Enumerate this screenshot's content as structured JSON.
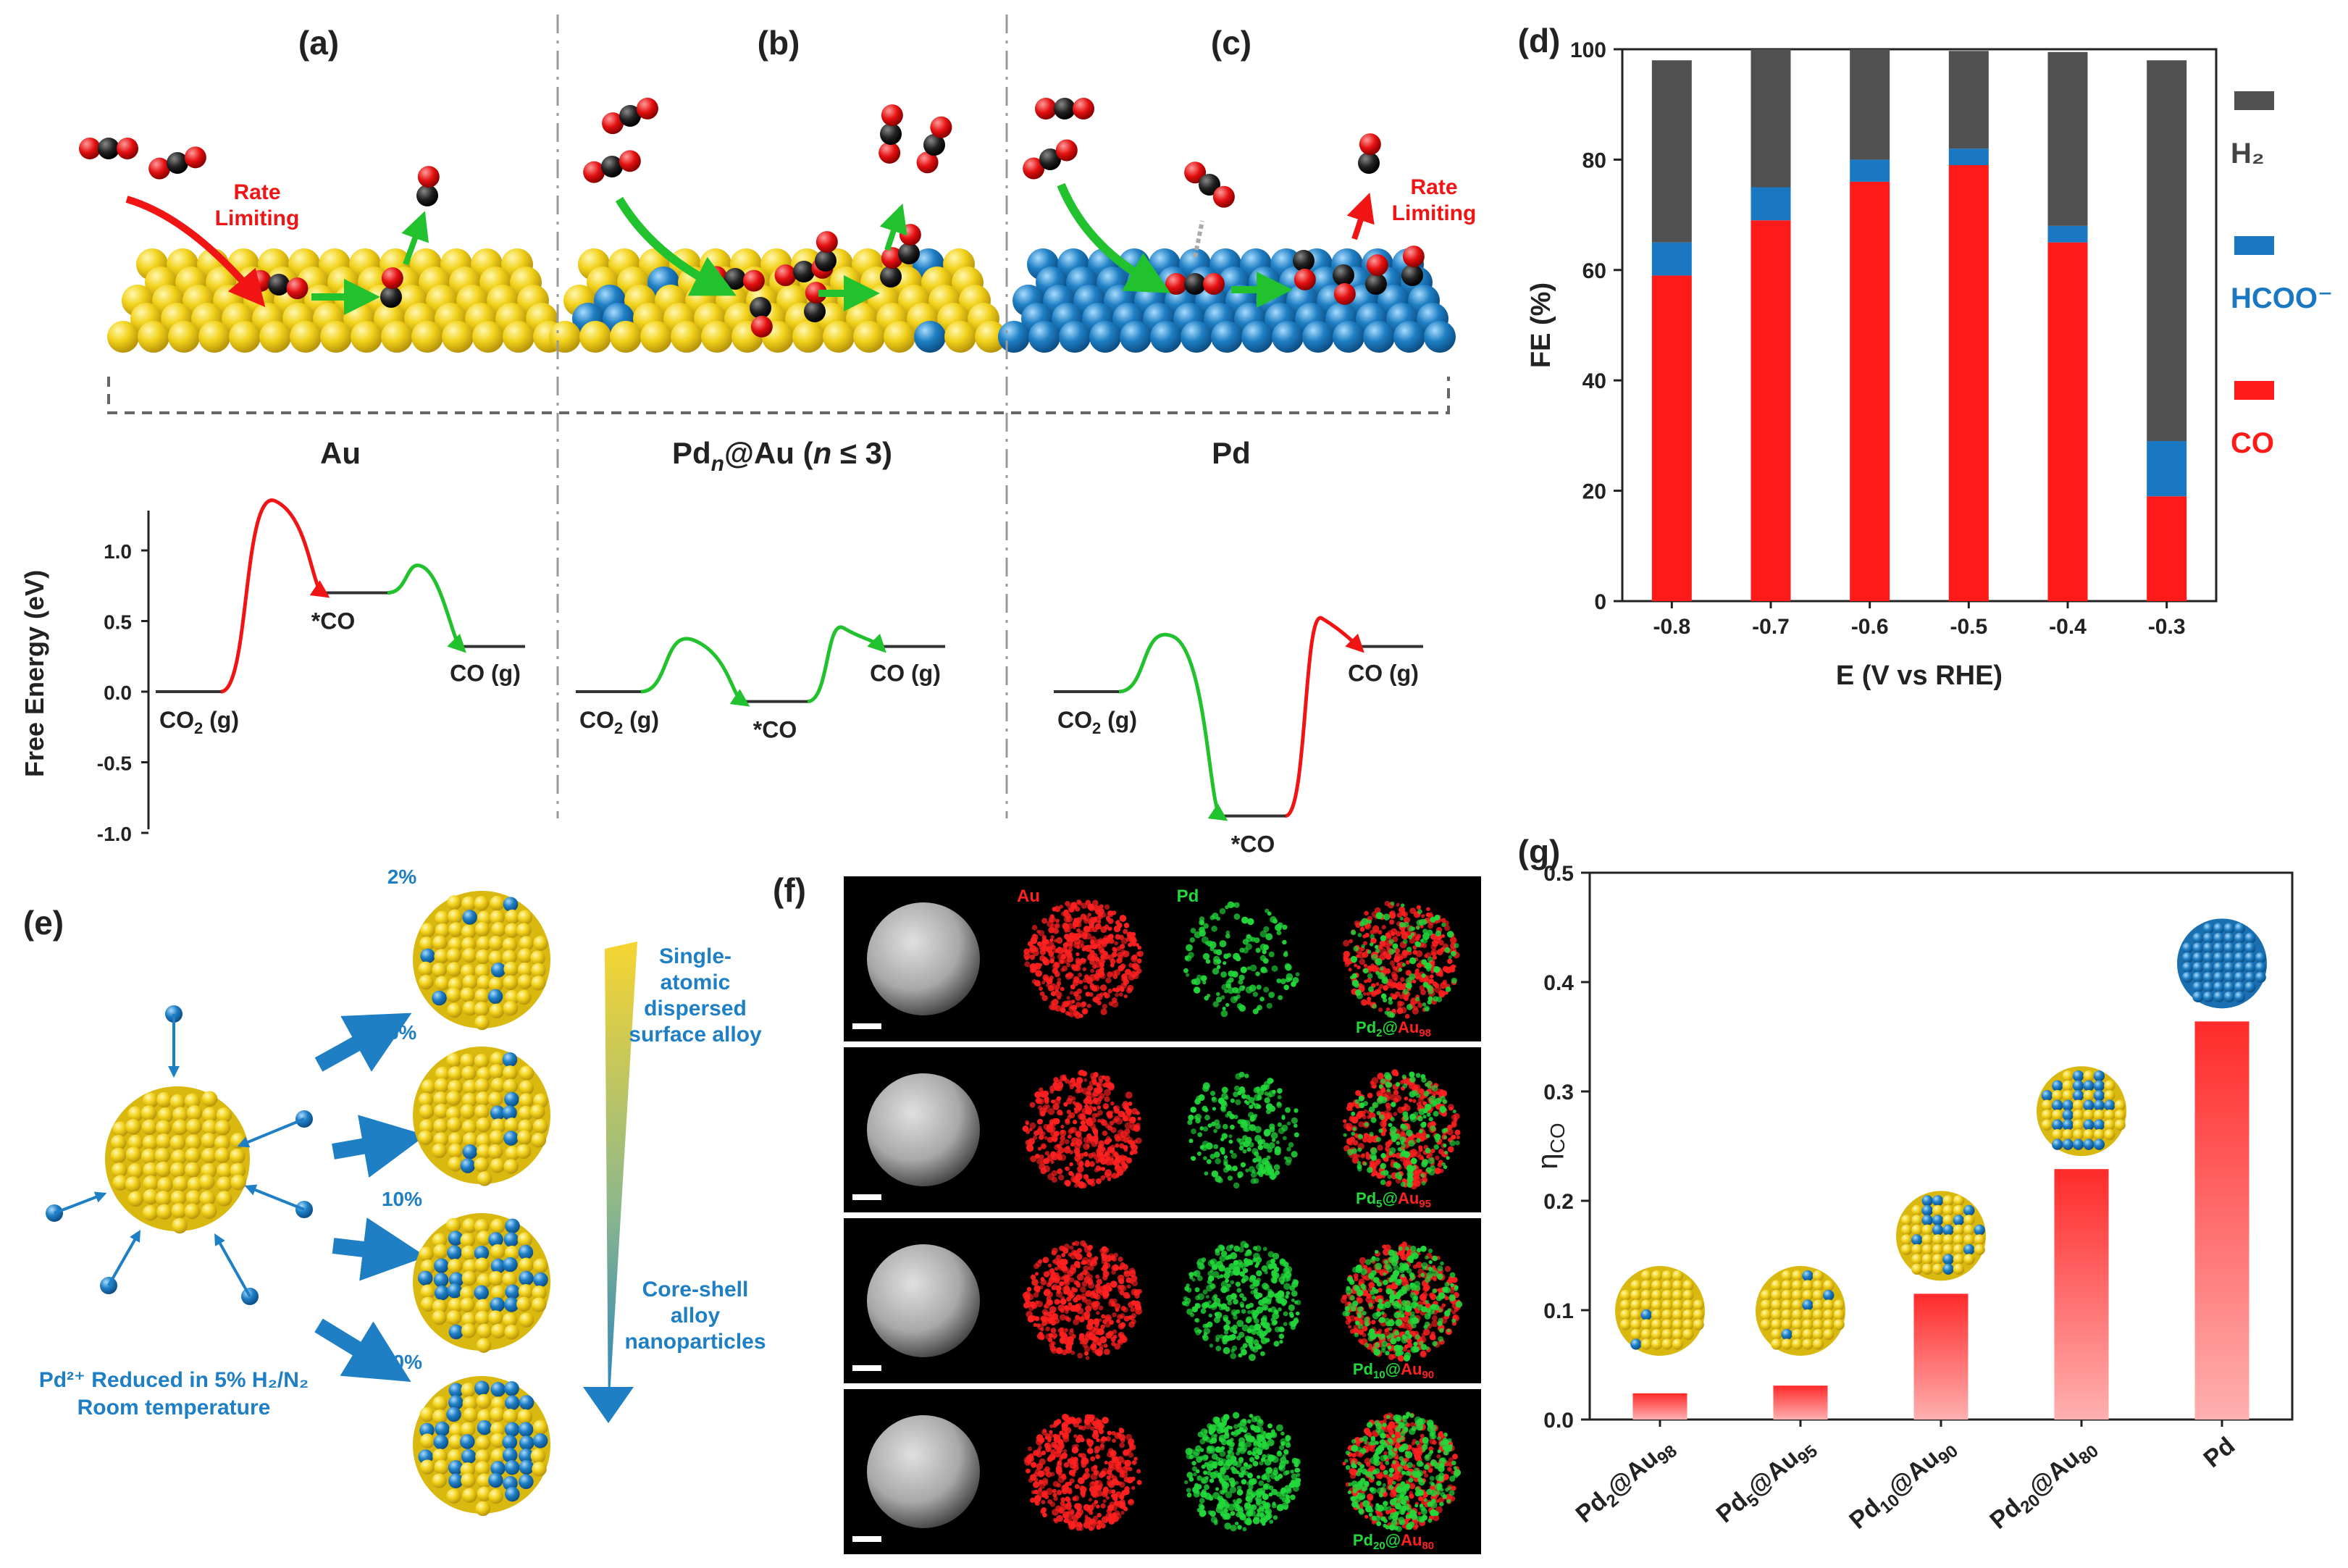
{
  "colors": {
    "au": "#f2d21b",
    "pd": "#1f7fc4",
    "co_bar": "#ff1a1a",
    "hcoo_bar": "#1a78c2",
    "h2_bar": "#505050",
    "red_path": "#f01414",
    "green_path": "#22c12e",
    "em_red": "#ff2020",
    "em_green": "#22d83a"
  },
  "panel_a": {
    "letter": "(a)",
    "surface_label": "Au",
    "annotation": "Rate\nLimiting",
    "energy_labels": {
      "start": "CO₂ (g)",
      "mid": "*CO",
      "end": "CO (g)"
    },
    "energy_levels": [
      0,
      1.35,
      0.7,
      0.88,
      0.32
    ]
  },
  "panel_b": {
    "letter": "(b)",
    "surface_label": "Pdₙ@Au  (n ≤ 3)",
    "energy_labels": {
      "start": "CO₂ (g)",
      "mid": "*CO",
      "end": "CO (g)"
    },
    "energy_levels": [
      0,
      0.36,
      -0.07,
      0.45,
      0.32
    ]
  },
  "panel_c": {
    "letter": "(c)",
    "surface_label": "Pd",
    "annotation": "Rate\nLimiting",
    "energy_labels": {
      "start": "CO₂ (g)",
      "mid": "*CO",
      "end": "CO (g)"
    },
    "energy_levels": [
      0,
      0.39,
      -0.88,
      0.52,
      0.32
    ]
  },
  "energy_axis": {
    "label": "Free Energy (eV)",
    "ticks": [
      "1.0",
      "0.5",
      "0.0",
      "-0.5",
      "-1.0"
    ],
    "ylim": [
      -1.0,
      1.0
    ]
  },
  "panel_d": {
    "letter": "(d)",
    "chart_data": {
      "type": "bar",
      "stacked": true,
      "categories": [
        "-0.8",
        "-0.7",
        "-0.6",
        "-0.5",
        "-0.4",
        "-0.3"
      ],
      "series": [
        {
          "name": "CO",
          "values": [
            59,
            69,
            76,
            79,
            65,
            19
          ]
        },
        {
          "name": "HCOO⁻",
          "values": [
            6,
            6,
            4,
            3,
            3,
            10
          ]
        },
        {
          "name": "H₂",
          "values": [
            33,
            25,
            20,
            17.7,
            31.5,
            69
          ]
        }
      ],
      "xlabel": "E (V vs RHE)",
      "ylabel": "FE (%)",
      "ylim": [
        0,
        100
      ],
      "yticks": [
        "0",
        "20",
        "40",
        "60",
        "80",
        "100"
      ],
      "legend_position": "right"
    }
  },
  "panel_e": {
    "letter": "(e)",
    "percentages": [
      "2%",
      "5%",
      "10%",
      "20%"
    ],
    "top_text": "Single-\natomic\ndispersed\nsurface alloy",
    "bottom_text": "Core-shell\nalloy\nnanoparticles",
    "caption": "Pd²⁺ Reduced in 5% H₂/N₂\nRoom temperature"
  },
  "panel_f": {
    "letter": "(f)",
    "channel_labels": [
      "Au",
      "Pd"
    ],
    "rows": [
      {
        "pd": "2",
        "au": "98",
        "pd_intensity": 0.25
      },
      {
        "pd": "5",
        "au": "95",
        "pd_intensity": 0.45
      },
      {
        "pd": "10",
        "au": "90",
        "pd_intensity": 0.75
      },
      {
        "pd": "20",
        "au": "80",
        "pd_intensity": 1.0
      }
    ]
  },
  "panel_g": {
    "letter": "(g)",
    "chart_data": {
      "type": "bar",
      "categories": [
        "Pd2@Au98",
        "Pd5@Au95",
        "Pd10@Au90",
        "Pd20@Au80",
        "Pd"
      ],
      "category_parts": [
        [
          "2",
          "98"
        ],
        [
          "5",
          "95"
        ],
        [
          "10",
          "90"
        ],
        [
          "20",
          "80"
        ],
        null
      ],
      "values": [
        0.024,
        0.031,
        0.115,
        0.229,
        0.364
      ],
      "pd_fraction": [
        0.02,
        0.05,
        0.1,
        0.2,
        1.0
      ],
      "ylabel": "ηCO",
      "ylim": [
        0,
        0.5
      ],
      "yticks": [
        "0.0",
        "0.1",
        "0.2",
        "0.3",
        "0.4",
        "0.5"
      ]
    }
  }
}
